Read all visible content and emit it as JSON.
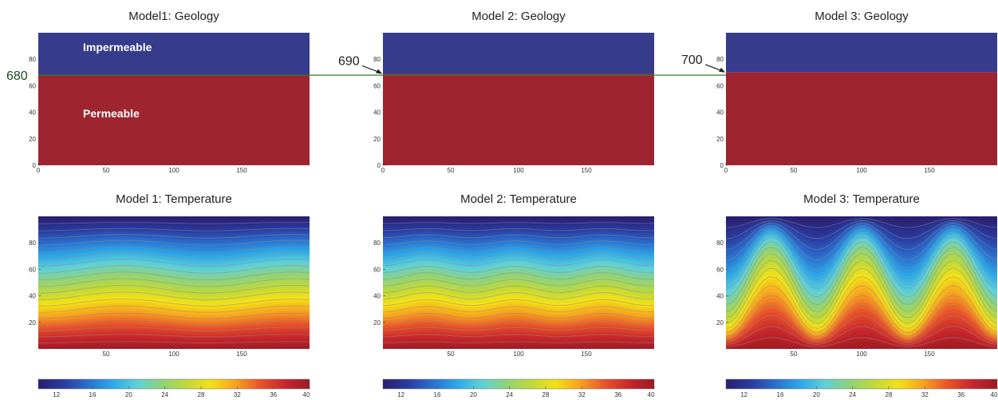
{
  "figure": {
    "guide_line_color": "#2e7d32",
    "geology_colors": {
      "impermeable": "#363b8c",
      "permeable": "#9e2530"
    },
    "colormap": [
      "#2a1e70",
      "#2b3a9e",
      "#2b6fcf",
      "#2ca8e8",
      "#5fd0d8",
      "#8fd37a",
      "#bfd93a",
      "#f4e116",
      "#f7a41e",
      "#e9532a",
      "#c8262c",
      "#9a1a22"
    ]
  },
  "chart_data": [
    {
      "type": "heatmap",
      "variant": "geology",
      "model": 1,
      "title": "Model1: Geology",
      "xlim": [
        0,
        200
      ],
      "ylim": [
        0,
        100
      ],
      "x_ticks": [
        "0",
        "50",
        "100",
        "150"
      ],
      "y_ticks": [
        "0",
        "20",
        "40",
        "60",
        "80"
      ],
      "interface_depth": 68,
      "layers": [
        {
          "label": "Impermeable",
          "from": 68,
          "to": 100
        },
        {
          "label": "Permeable",
          "from": 0,
          "to": 68
        }
      ],
      "annotation": "680"
    },
    {
      "type": "heatmap",
      "variant": "geology",
      "model": 2,
      "title": "Model 2: Geology",
      "xlim": [
        0,
        200
      ],
      "ylim": [
        0,
        100
      ],
      "x_ticks": [
        "0",
        "50",
        "100",
        "150"
      ],
      "y_ticks": [
        "0",
        "20",
        "40",
        "60",
        "80"
      ],
      "interface_depth": 69,
      "layers": [
        {
          "label": "",
          "from": 69,
          "to": 100
        },
        {
          "label": "",
          "from": 0,
          "to": 69
        }
      ],
      "annotation": "690"
    },
    {
      "type": "heatmap",
      "variant": "geology",
      "model": 3,
      "title": "Model 3: Geology",
      "xlim": [
        0,
        200
      ],
      "ylim": [
        0,
        100
      ],
      "x_ticks": [
        "0",
        "50",
        "100",
        "150"
      ],
      "y_ticks": [
        "0",
        "20",
        "40",
        "60",
        "80"
      ],
      "interface_depth": 70,
      "layers": [
        {
          "label": "",
          "from": 70,
          "to": 100
        },
        {
          "label": "",
          "from": 0,
          "to": 70
        }
      ],
      "annotation": "700"
    },
    {
      "type": "heatmap",
      "variant": "temperature",
      "model": 1,
      "title": "Model 1: Temperature",
      "xlim": [
        0,
        200
      ],
      "ylim": [
        0,
        100
      ],
      "x_ticks": [
        "50",
        "100",
        "150"
      ],
      "y_ticks": [
        "20",
        "40",
        "60",
        "80"
      ],
      "temperature_range": [
        10,
        40
      ],
      "plume_amplitude": 3,
      "plume_wavelength": 125,
      "colorbar_ticks": [
        "12",
        "16",
        "20",
        "24",
        "28",
        "32",
        "36",
        "40"
      ]
    },
    {
      "type": "heatmap",
      "variant": "temperature",
      "model": 2,
      "title": "Model 2: Temperature",
      "xlim": [
        0,
        200
      ],
      "ylim": [
        0,
        100
      ],
      "x_ticks": [
        "50",
        "100",
        "150"
      ],
      "y_ticks": [
        "20",
        "40",
        "60",
        "80"
      ],
      "temperature_range": [
        10,
        40
      ],
      "plume_amplitude": 2.5,
      "plume_wavelength": 65,
      "colorbar_ticks": [
        "12",
        "16",
        "20",
        "24",
        "28",
        "32",
        "36",
        "40"
      ]
    },
    {
      "type": "heatmap",
      "variant": "temperature",
      "model": 3,
      "title": "Model 3: Temperature",
      "xlim": [
        0,
        200
      ],
      "ylim": [
        0,
        100
      ],
      "x_ticks": [
        "50",
        "100",
        "150"
      ],
      "y_ticks": [
        "20",
        "40",
        "60",
        "80"
      ],
      "temperature_range": [
        10,
        40
      ],
      "plume_amplitude": 22,
      "plume_wavelength": 67,
      "colorbar_ticks": [
        "12",
        "16",
        "20",
        "24",
        "28",
        "32",
        "36",
        "40"
      ]
    }
  ]
}
